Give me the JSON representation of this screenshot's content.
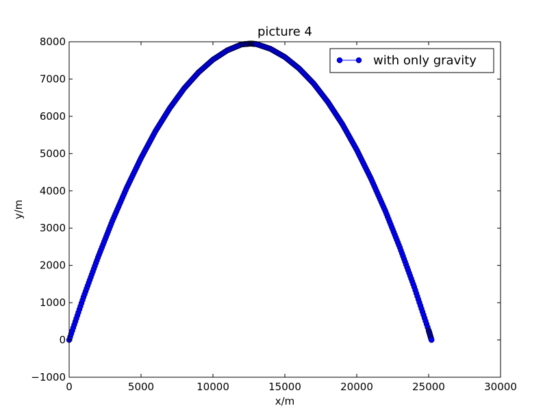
{
  "chart_data": {
    "type": "line",
    "title": "picture 4",
    "xlabel": "x/m",
    "ylabel": "y/m",
    "xlim": [
      0,
      30000
    ],
    "ylim": [
      -1000,
      8000
    ],
    "xticks": [
      0,
      5000,
      10000,
      15000,
      20000,
      25000,
      30000
    ],
    "yticks": [
      -1000,
      0,
      1000,
      2000,
      3000,
      4000,
      5000,
      6000,
      7000,
      8000
    ],
    "xtick_labels": [
      "0",
      "5000",
      "10000",
      "15000",
      "20000",
      "25000",
      "30000"
    ],
    "ytick_labels": [
      "−1000",
      "0",
      "1000",
      "2000",
      "3000",
      "4000",
      "5000",
      "6000",
      "7000",
      "8000"
    ],
    "grid": false,
    "legend": {
      "position": "top-right"
    },
    "series": [
      {
        "name": "with only gravity",
        "color": "#0000ff",
        "marker": "circle",
        "x": [
          0,
          1000,
          2000,
          3000,
          4000,
          5000,
          6000,
          7000,
          8000,
          9000,
          10000,
          11000,
          12000,
          12600,
          13000,
          14000,
          15000,
          16000,
          17000,
          18000,
          19000,
          20000,
          21000,
          22000,
          23000,
          24000,
          25000,
          25200
        ],
        "y": [
          0,
          1150,
          2210,
          3190,
          4080,
          4880,
          5600,
          6220,
          6750,
          7180,
          7520,
          7770,
          7930,
          7950,
          7940,
          7810,
          7590,
          7280,
          6880,
          6380,
          5790,
          5100,
          4320,
          3450,
          2480,
          1420,
          260,
          0
        ]
      }
    ]
  }
}
